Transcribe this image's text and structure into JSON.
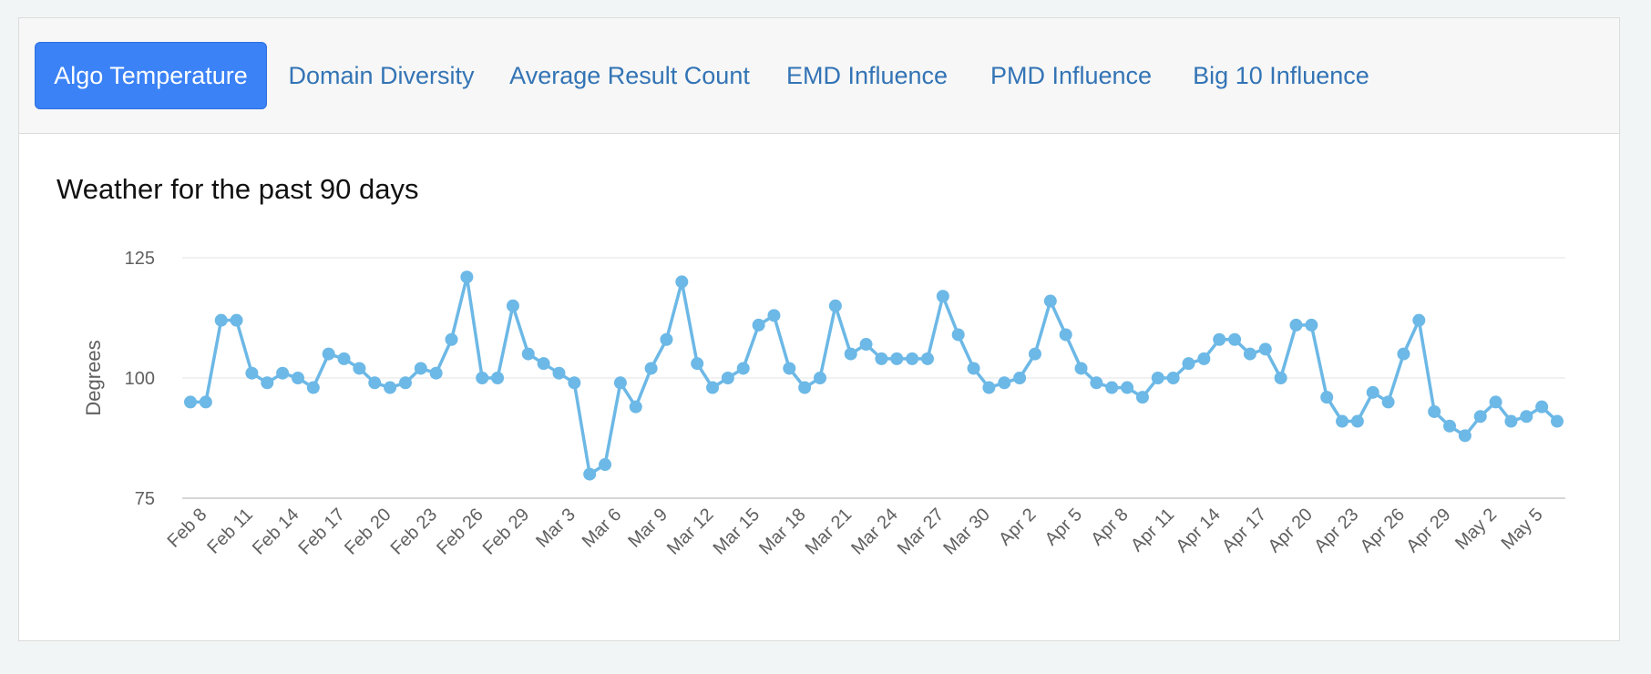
{
  "tabs": [
    {
      "label": "Algo Temperature",
      "active": true
    },
    {
      "label": "Domain Diversity",
      "active": false
    },
    {
      "label": "Average Result Count",
      "active": false
    },
    {
      "label": "EMD Influence",
      "active": false
    },
    {
      "label": "PMD Influence",
      "active": false
    },
    {
      "label": "Big 10 Influence",
      "active": false
    }
  ],
  "colors": {
    "accent": "#3b82f6",
    "series": "#6cb8e6",
    "tab_link": "#3374b5"
  },
  "chart_data": {
    "type": "line",
    "title": "Weather for the past 90 days",
    "xlabel": "",
    "ylabel": "Degrees",
    "ylim": [
      75,
      125
    ],
    "yticks": [
      75,
      100,
      125
    ],
    "grid": true,
    "legend": "none",
    "x_tick_labels": [
      "Feb 8",
      "Feb 11",
      "Feb 14",
      "Feb 17",
      "Feb 20",
      "Feb 23",
      "Feb 26",
      "Feb 29",
      "Mar 3",
      "Mar 6",
      "Mar 9",
      "Mar 12",
      "Mar 15",
      "Mar 18",
      "Mar 21",
      "Mar 24",
      "Mar 27",
      "Mar 30",
      "Apr 2",
      "Apr 5",
      "Apr 8",
      "Apr 11",
      "Apr 14",
      "Apr 17",
      "Apr 20",
      "Apr 23",
      "Apr 26",
      "Apr 29",
      "May 2",
      "May 5"
    ],
    "series": [
      {
        "name": "Degrees",
        "values": [
          95,
          95,
          112,
          112,
          101,
          99,
          101,
          100,
          98,
          105,
          104,
          102,
          99,
          98,
          99,
          102,
          101,
          108,
          121,
          100,
          100,
          115,
          105,
          103,
          101,
          99,
          80,
          82,
          99,
          94,
          102,
          108,
          120,
          103,
          98,
          100,
          102,
          111,
          113,
          102,
          98,
          100,
          115,
          105,
          107,
          104,
          104,
          104,
          104,
          117,
          109,
          102,
          98,
          99,
          100,
          105,
          116,
          109,
          102,
          99,
          98,
          98,
          96,
          100,
          100,
          103,
          104,
          108,
          108,
          105,
          106,
          100,
          111,
          111,
          96,
          91,
          91,
          97,
          95,
          105,
          112,
          93,
          90,
          88,
          92,
          95,
          91,
          92,
          94,
          91
        ]
      }
    ]
  }
}
